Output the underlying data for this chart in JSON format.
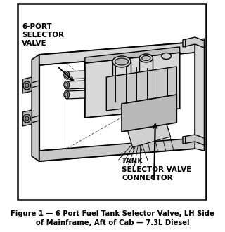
{
  "bg_color": "#ffffff",
  "fig_width": 3.2,
  "fig_height": 3.31,
  "dpi": 100,
  "title_text": "Figure 1 — 6 Port Fuel Tank Selector Valve, LH Side\nof Mainframe, Aft of Cab — 7.3L Diesel",
  "label_6port": "6-PORT\nSELECTOR\nVALVE",
  "label_tank": "TANK\nSELECTOR VALVE\nCONNECTOR",
  "title_fontsize": 7.5,
  "label_fontsize": 7.5,
  "caption_fontsize": 7.2
}
